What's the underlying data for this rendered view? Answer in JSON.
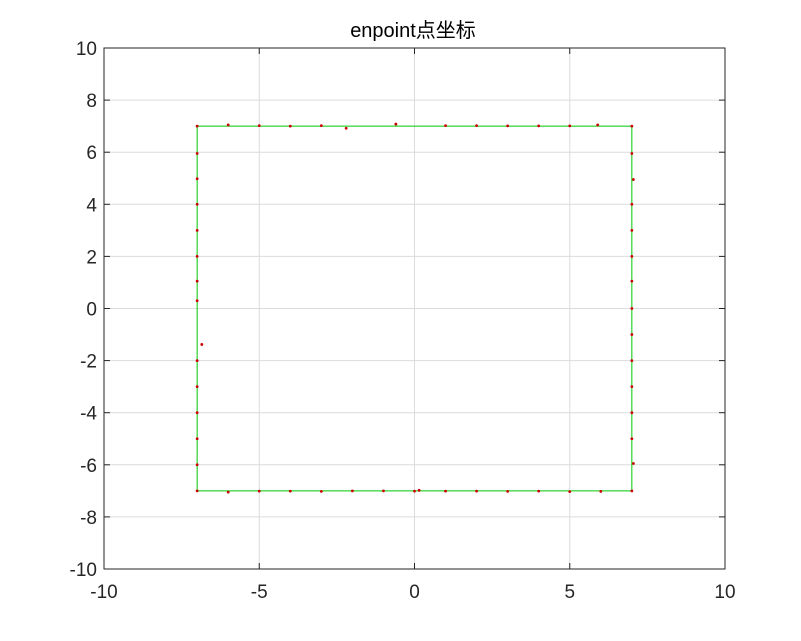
{
  "chart_data": {
    "type": "scatter",
    "title": "enpoint点坐标",
    "xlabel": "",
    "ylabel": "",
    "xlim": [
      -10,
      10
    ],
    "ylim": [
      -10,
      10
    ],
    "xticks": [
      -10,
      -5,
      0,
      5,
      10
    ],
    "yticks": [
      -10,
      -8,
      -6,
      -4,
      -2,
      0,
      2,
      4,
      6,
      8,
      10
    ],
    "xtick_labels": [
      "-10",
      "-5",
      "0",
      "5",
      "10"
    ],
    "ytick_labels": [
      "-10",
      "-8",
      "-6",
      "-4",
      "-2",
      "0",
      "2",
      "4",
      "6",
      "8",
      "10"
    ],
    "grid": true,
    "legend": false,
    "series": [
      {
        "type": "line",
        "color": "#00c800",
        "x": [
          -7,
          7,
          7,
          -7,
          -7
        ],
        "y": [
          7,
          7,
          -7,
          -7,
          7
        ]
      },
      {
        "type": "scatter",
        "color": "#c80000",
        "points": [
          [
            -7,
            7
          ],
          [
            -6,
            7.05
          ],
          [
            -5,
            7.02
          ],
          [
            -4,
            7
          ],
          [
            -3,
            7.02
          ],
          [
            -2.2,
            6.92
          ],
          [
            -0.6,
            7.08
          ],
          [
            1,
            7.02
          ],
          [
            2,
            7.02
          ],
          [
            3,
            7.01
          ],
          [
            4,
            7.01
          ],
          [
            5,
            7.01
          ],
          [
            5.9,
            7.05
          ],
          [
            7,
            7
          ],
          [
            7,
            5.95
          ],
          [
            7.05,
            4.95
          ],
          [
            7,
            4
          ],
          [
            7,
            3
          ],
          [
            7,
            2
          ],
          [
            7,
            1.05
          ],
          [
            7,
            0
          ],
          [
            7,
            -1
          ],
          [
            7,
            -2
          ],
          [
            7,
            -3
          ],
          [
            7,
            -4
          ],
          [
            7,
            -5
          ],
          [
            7.05,
            -5.95
          ],
          [
            7,
            -7
          ],
          [
            -7,
            5.95
          ],
          [
            -7,
            4.98
          ],
          [
            -7,
            4
          ],
          [
            -7,
            3
          ],
          [
            -7,
            2
          ],
          [
            -7,
            1.05
          ],
          [
            -7,
            0.3
          ],
          [
            -6.85,
            -1.38
          ],
          [
            -7,
            -2
          ],
          [
            -7,
            -3
          ],
          [
            -7,
            -4
          ],
          [
            -7,
            -5
          ],
          [
            -7,
            -6
          ],
          [
            -7,
            -7
          ],
          [
            -6,
            -7.05
          ],
          [
            -5,
            -7.01
          ],
          [
            -4,
            -7.01
          ],
          [
            -3,
            -7.02
          ],
          [
            -2,
            -7
          ],
          [
            -1,
            -7
          ],
          [
            0,
            -7.01
          ],
          [
            0.15,
            -6.98
          ],
          [
            1,
            -7.01
          ],
          [
            2,
            -7.01
          ],
          [
            3,
            -7.02
          ],
          [
            4,
            -7.01
          ],
          [
            5,
            -7.03
          ],
          [
            6,
            -7.02
          ]
        ]
      }
    ]
  }
}
